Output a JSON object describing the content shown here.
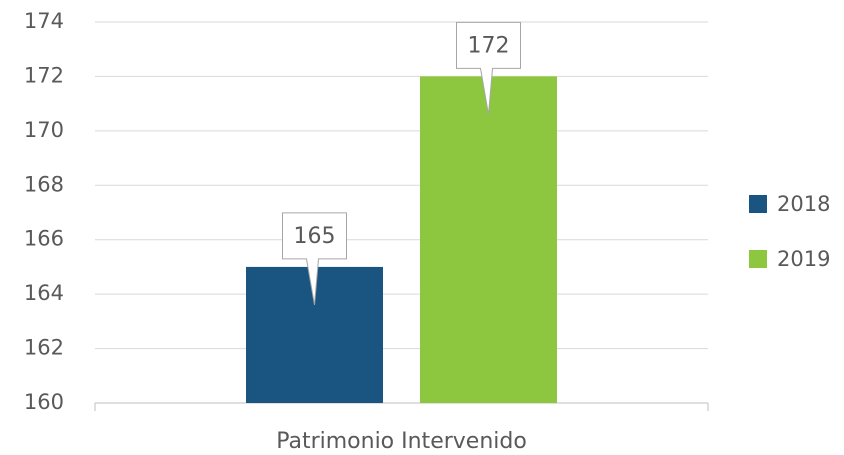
{
  "chart_data": {
    "type": "bar",
    "categories": [
      "Patrimonio Intervenido"
    ],
    "series": [
      {
        "name": "2018",
        "color": "#1a5480",
        "values": [
          165
        ]
      },
      {
        "name": "2019",
        "color": "#8dc63f",
        "values": [
          172
        ]
      }
    ],
    "ylim": [
      160,
      174
    ],
    "yticks": [
      160,
      162,
      164,
      166,
      168,
      170,
      172,
      174
    ],
    "grid": true,
    "legend": "right",
    "data_labels": true
  }
}
